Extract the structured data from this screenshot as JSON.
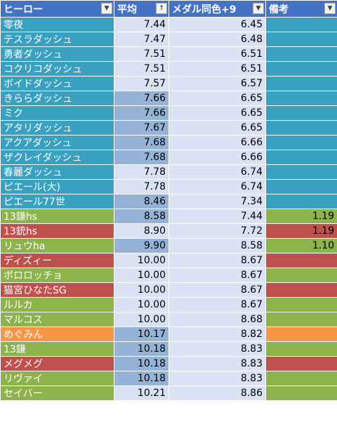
{
  "colors": {
    "header_bg": "#4472c4",
    "teal": "#3aa0c0",
    "green": "#8db34d",
    "red": "#c0504d",
    "orange": "#f79646",
    "cell_light": "#d9e1f2",
    "cell_mid": "#95b3d7"
  },
  "headers": [
    {
      "label": "ヒーロー",
      "filter_icon": "dropdown-arrow-icon",
      "filter_glyph": "▼"
    },
    {
      "label": "平均",
      "filter_icon": "sort-ascending-icon",
      "filter_glyph": "↑"
    },
    {
      "label": "メダル同色+9",
      "filter_icon": "dropdown-arrow-icon",
      "filter_glyph": "▼"
    },
    {
      "label": "備考",
      "filter_icon": "dropdown-arrow-icon",
      "filter_glyph": "▼"
    }
  ],
  "rows": [
    {
      "name": "零夜",
      "avg": "7.44",
      "medal": "6.45",
      "note": "",
      "color": "teal",
      "avg_shade": "light"
    },
    {
      "name": "テスラダッシュ",
      "avg": "7.47",
      "medal": "6.48",
      "note": "",
      "color": "teal",
      "avg_shade": "light"
    },
    {
      "name": "勇者ダッシュ",
      "avg": "7.51",
      "medal": "6.51",
      "note": "",
      "color": "teal",
      "avg_shade": "light"
    },
    {
      "name": "コクリコダッシュ",
      "avg": "7.51",
      "medal": "6.51",
      "note": "",
      "color": "teal",
      "avg_shade": "light"
    },
    {
      "name": "ボイドダッシュ",
      "avg": "7.57",
      "medal": "6.57",
      "note": "",
      "color": "teal",
      "avg_shade": "light"
    },
    {
      "name": "きららダッシュ",
      "avg": "7.66",
      "medal": "6.65",
      "note": "",
      "color": "teal",
      "avg_shade": "mid"
    },
    {
      "name": "ミク",
      "avg": "7.66",
      "medal": "6.65",
      "note": "",
      "color": "teal",
      "avg_shade": "mid"
    },
    {
      "name": "アタリダッシュ",
      "avg": "7.67",
      "medal": "6.65",
      "note": "",
      "color": "teal",
      "avg_shade": "mid"
    },
    {
      "name": "アクアダッシュ",
      "avg": "7.68",
      "medal": "6.66",
      "note": "",
      "color": "teal",
      "avg_shade": "mid"
    },
    {
      "name": "ザクレイダッシュ",
      "avg": "7.68",
      "medal": "6.66",
      "note": "",
      "color": "teal",
      "avg_shade": "mid"
    },
    {
      "name": "春麗ダッシュ",
      "avg": "7.78",
      "medal": "6.74",
      "note": "",
      "color": "teal",
      "avg_shade": "light"
    },
    {
      "name": "ピエール(大)",
      "avg": "7.78",
      "medal": "6.74",
      "note": "",
      "color": "teal",
      "avg_shade": "light"
    },
    {
      "name": "ピエール77世",
      "avg": "8.46",
      "medal": "7.34",
      "note": "",
      "color": "teal",
      "avg_shade": "mid"
    },
    {
      "name": "13鎌hs",
      "avg": "8.58",
      "medal": "7.44",
      "note": "1.19",
      "color": "green",
      "avg_shade": "mid"
    },
    {
      "name": "13銃hs",
      "avg": "8.90",
      "medal": "7.72",
      "note": "1.19",
      "color": "red",
      "avg_shade": "light"
    },
    {
      "name": "リュウha",
      "avg": "9.90",
      "medal": "8.58",
      "note": "1.10",
      "color": "green",
      "avg_shade": "mid"
    },
    {
      "name": "ディズィー",
      "avg": "10.00",
      "medal": "8.67",
      "note": "",
      "color": "red",
      "avg_shade": "light"
    },
    {
      "name": "ポロロッチョ",
      "avg": "10.00",
      "medal": "8.67",
      "note": "",
      "color": "green",
      "avg_shade": "light"
    },
    {
      "name": "猫宮ひなたSG",
      "avg": "10.00",
      "medal": "8.67",
      "note": "",
      "color": "red",
      "avg_shade": "light"
    },
    {
      "name": "ルルカ",
      "avg": "10.00",
      "medal": "8.67",
      "note": "",
      "color": "green",
      "avg_shade": "light"
    },
    {
      "name": "マルコス",
      "avg": "10.00",
      "medal": "8.68",
      "note": "",
      "color": "green",
      "avg_shade": "light"
    },
    {
      "name": "めぐみん",
      "avg": "10.17",
      "medal": "8.82",
      "note": "",
      "color": "orange",
      "avg_shade": "mid"
    },
    {
      "name": "13鎌",
      "avg": "10.18",
      "medal": "8.83",
      "note": "",
      "color": "green",
      "avg_shade": "mid"
    },
    {
      "name": "メグメグ",
      "avg": "10.18",
      "medal": "8.83",
      "note": "",
      "color": "red",
      "avg_shade": "mid"
    },
    {
      "name": "リヴァイ",
      "avg": "10.18",
      "medal": "8.83",
      "note": "",
      "color": "green",
      "avg_shade": "mid"
    },
    {
      "name": "セイバー",
      "avg": "10.21",
      "medal": "8.86",
      "note": "",
      "color": "green",
      "avg_shade": "light"
    }
  ]
}
